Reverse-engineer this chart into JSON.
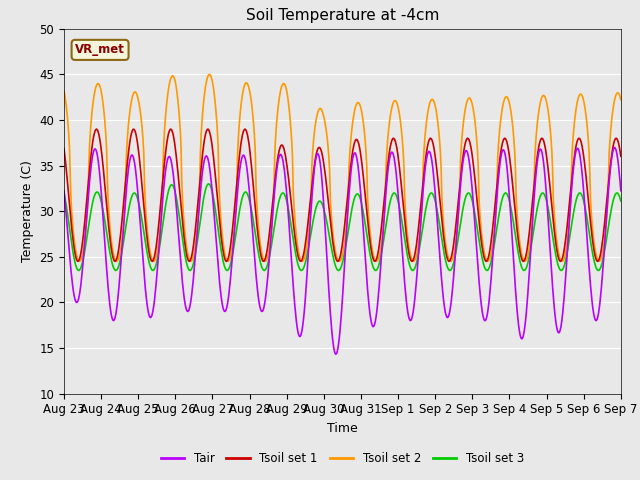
{
  "title": "Soil Temperature at -4cm",
  "xlabel": "Time",
  "ylabel": "Temperature (C)",
  "ylim": [
    10,
    50
  ],
  "background_color": "#e8e8e8",
  "plot_bg_color": "#e8e8e8",
  "grid_color": "white",
  "annotation_text": "VR_met",
  "annotation_color": "#8B0000",
  "annotation_bg": "#f5f5dc",
  "annotation_border": "#8B6914",
  "tick_labels": [
    "Aug 23",
    "Aug 24",
    "Aug 25",
    "Aug 26",
    "Aug 27",
    "Aug 28",
    "Aug 29",
    "Aug 30",
    "Aug 31",
    "Sep 1",
    "Sep 2",
    "Sep 3",
    "Sep 4",
    "Sep 5",
    "Sep 6",
    "Sep 7"
  ],
  "series": {
    "Tair": {
      "color": "#bb00ff",
      "lw": 1.2
    },
    "Tsoil set 1": {
      "color": "#cc0000",
      "lw": 1.2
    },
    "Tsoil set 2": {
      "color": "#ff9900",
      "lw": 1.2
    },
    "Tsoil set 3": {
      "color": "#00cc00",
      "lw": 1.2
    }
  }
}
